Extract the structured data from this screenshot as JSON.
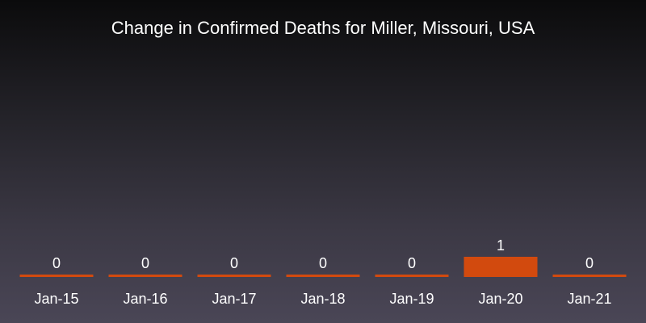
{
  "chart_data": {
    "type": "bar",
    "title": "Change in Confirmed Deaths for Miller, Missouri, USA",
    "categories": [
      "Jan-15",
      "Jan-16",
      "Jan-17",
      "Jan-18",
      "Jan-19",
      "Jan-20",
      "Jan-21"
    ],
    "values": [
      0,
      0,
      0,
      0,
      0,
      1,
      0
    ],
    "ylim": [
      0,
      1
    ],
    "grid": false,
    "bar_color": "#d24a0e"
  }
}
